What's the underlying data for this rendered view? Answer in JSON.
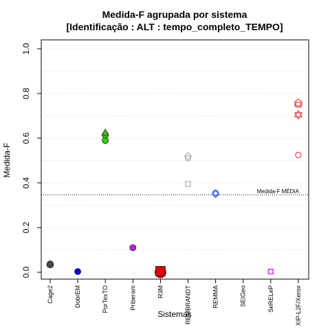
{
  "chart_data": {
    "type": "scatter",
    "title_line1": "Medida-F agrupada por sistema",
    "title_line2": "[Identificação : ALT : tempo_completo_TEMPO]",
    "xlabel": "Sistemas",
    "ylabel": "Medida-F",
    "ylim": [
      0,
      1.0
    ],
    "yticks": [
      "0.0",
      "0.2",
      "0.4",
      "0.6",
      "0.8",
      "1.0"
    ],
    "grid": "horizontal dotted",
    "categories": [
      "Cage2",
      "DobrEM",
      "PorTexTO",
      "Priberam",
      "R3M",
      "REMBRANDT",
      "REMMA",
      "SEIGeo",
      "SeRELeP",
      "XIP-L2F/Xerox"
    ],
    "reference_line": {
      "value": 0.347,
      "label": "Medida-F MÉDIA"
    },
    "colors": {
      "Cage2": "#555555",
      "DobrEM": "#0000dd",
      "PorTexTO": "#33cc00",
      "Priberam": "#bb22dd",
      "R3M": "#dd0000",
      "REMBRANDT": "#aaaaaa",
      "REMMA": "#3355ee",
      "SeRELeP": "#ee33ee",
      "XIP-L2F/Xerox": "#ee4444"
    },
    "points": [
      {
        "category": "Cage2",
        "y": 0.035,
        "shape": "circle",
        "filled": true,
        "r": 5
      },
      {
        "category": "Cage2",
        "y": 0.04,
        "shape": "triangle",
        "filled": true,
        "r": 4
      },
      {
        "category": "DobrEM",
        "y": 0.003,
        "shape": "circle",
        "filled": true,
        "r": 4.5
      },
      {
        "category": "PorTexTO",
        "y": 0.59,
        "shape": "circle",
        "filled": true,
        "r": 4.5
      },
      {
        "category": "PorTexTO",
        "y": 0.615,
        "shape": "circle",
        "filled": true,
        "r": 4.5
      },
      {
        "category": "PorTexTO",
        "y": 0.625,
        "shape": "triangle",
        "filled": true,
        "r": 5
      },
      {
        "category": "Priberam",
        "y": 0.11,
        "shape": "circle",
        "filled": true,
        "r": 4.5
      },
      {
        "category": "R3M",
        "y": 0.0,
        "shape": "circle",
        "filled": true,
        "r": 8
      },
      {
        "category": "R3M",
        "y": 0.005,
        "shape": "square",
        "filled": true,
        "r": 7
      },
      {
        "category": "REMBRANDT",
        "y": 0.51,
        "shape": "circle",
        "filled": false,
        "r": 4
      },
      {
        "category": "REMBRANDT",
        "y": 0.52,
        "shape": "diamond",
        "filled": false,
        "r": 5
      },
      {
        "category": "REMBRANDT",
        "y": 0.395,
        "shape": "square",
        "filled": false,
        "r": 3.5
      },
      {
        "category": "REMMA",
        "y": 0.355,
        "shape": "circle",
        "filled": false,
        "r": 4
      },
      {
        "category": "REMMA",
        "y": 0.35,
        "shape": "diamond",
        "filled": false,
        "r": 5
      },
      {
        "category": "SeRELeP",
        "y": 0.003,
        "shape": "circle",
        "filled": false,
        "r": 3.5
      },
      {
        "category": "SeRELeP",
        "y": 0.003,
        "shape": "square",
        "filled": false,
        "r": 3.5
      },
      {
        "category": "XIP-L2F/Xerox",
        "y": 0.76,
        "shape": "house",
        "filled": false,
        "r": 5
      },
      {
        "category": "XIP-L2F/Xerox",
        "y": 0.75,
        "shape": "square",
        "filled": false,
        "r": 3.5
      },
      {
        "category": "XIP-L2F/Xerox",
        "y": 0.705,
        "shape": "star",
        "filled": false,
        "r": 6
      },
      {
        "category": "XIP-L2F/Xerox",
        "y": 0.525,
        "shape": "circle",
        "filled": false,
        "r": 4
      }
    ]
  }
}
